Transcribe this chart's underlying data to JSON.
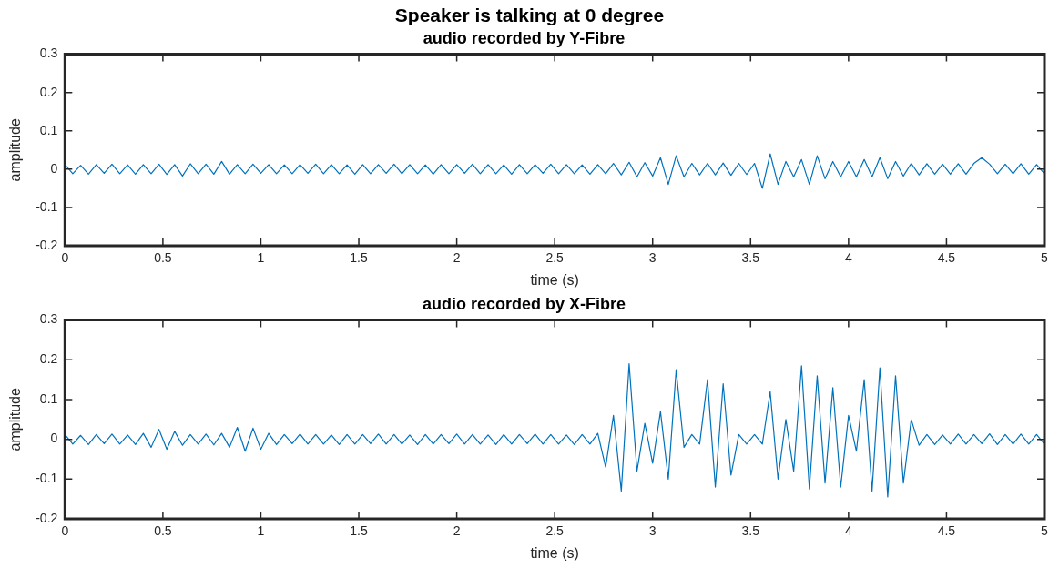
{
  "chart_data": [
    {
      "type": "line",
      "title": "Speaker is talking at 0 degree",
      "subtitle": "audio recorded by Y-Fibre",
      "xlabel": "time (s)",
      "ylabel": "amplitude",
      "marker": "none",
      "grid": false,
      "xlim": [
        0,
        5
      ],
      "xticks": [
        0,
        0.5,
        1,
        1.5,
        2,
        2.5,
        3,
        3.5,
        4,
        4.5,
        5
      ],
      "ylim": [
        -0.2,
        0.3
      ],
      "yticks": [
        -0.2,
        -0.1,
        0,
        0.1,
        0.2,
        0.3
      ],
      "x": [
        0,
        0.04,
        0.08,
        0.12,
        0.16,
        0.2,
        0.24,
        0.28,
        0.32,
        0.36,
        0.4,
        0.44,
        0.48,
        0.52,
        0.56,
        0.6,
        0.64,
        0.68,
        0.72,
        0.76,
        0.8,
        0.84,
        0.88,
        0.92,
        0.96,
        1,
        1.04,
        1.08,
        1.12,
        1.16,
        1.2,
        1.24,
        1.28,
        1.32,
        1.36,
        1.4,
        1.44,
        1.48,
        1.52,
        1.56,
        1.6,
        1.64,
        1.68,
        1.72,
        1.76,
        1.8,
        1.84,
        1.88,
        1.92,
        1.96,
        2,
        2.04,
        2.08,
        2.12,
        2.16,
        2.2,
        2.24,
        2.28,
        2.32,
        2.36,
        2.4,
        2.44,
        2.48,
        2.52,
        2.56,
        2.6,
        2.64,
        2.68,
        2.72,
        2.76,
        2.8,
        2.84,
        2.88,
        2.92,
        2.96,
        3,
        3.04,
        3.08,
        3.12,
        3.16,
        3.2,
        3.24,
        3.28,
        3.32,
        3.36,
        3.4,
        3.44,
        3.48,
        3.52,
        3.56,
        3.6,
        3.64,
        3.68,
        3.72,
        3.76,
        3.8,
        3.84,
        3.88,
        3.92,
        3.96,
        4,
        4.04,
        4.08,
        4.12,
        4.16,
        4.2,
        4.24,
        4.28,
        4.32,
        4.36,
        4.4,
        4.44,
        4.48,
        4.52,
        4.56,
        4.6,
        4.64,
        4.68,
        4.72,
        4.76,
        4.8,
        4.84,
        4.88,
        4.92,
        4.96,
        5
      ],
      "series": [
        {
          "color": "#0072bd",
          "values": [
            0.012,
            -0.012,
            0.01,
            -0.013,
            0.012,
            -0.011,
            0.013,
            -0.012,
            0.011,
            -0.013,
            0.012,
            -0.012,
            0.013,
            -0.014,
            0.012,
            -0.018,
            0.014,
            -0.012,
            0.013,
            -0.013,
            0.02,
            -0.013,
            0.012,
            -0.012,
            0.013,
            -0.011,
            0.012,
            -0.012,
            0.011,
            -0.012,
            0.012,
            -0.011,
            0.013,
            -0.012,
            0.012,
            -0.012,
            0.011,
            -0.013,
            0.012,
            -0.012,
            0.012,
            -0.011,
            0.013,
            -0.012,
            0.012,
            -0.012,
            0.011,
            -0.013,
            0.012,
            -0.012,
            0.012,
            -0.011,
            0.013,
            -0.012,
            0.012,
            -0.012,
            0.011,
            -0.013,
            0.012,
            -0.012,
            0.012,
            -0.011,
            0.013,
            -0.012,
            0.012,
            -0.012,
            0.011,
            -0.013,
            0.012,
            -0.012,
            0.015,
            -0.015,
            0.018,
            -0.02,
            0.017,
            -0.018,
            0.03,
            -0.04,
            0.035,
            -0.02,
            0.015,
            -0.015,
            0.015,
            -0.015,
            0.016,
            -0.016,
            0.015,
            -0.014,
            0.015,
            -0.05,
            0.04,
            -0.04,
            0.02,
            -0.02,
            0.025,
            -0.04,
            0.035,
            -0.025,
            0.02,
            -0.02,
            0.02,
            -0.02,
            0.025,
            -0.02,
            0.03,
            -0.025,
            0.02,
            -0.018,
            0.015,
            -0.015,
            0.014,
            -0.013,
            0.013,
            -0.013,
            0.014,
            -0.013,
            0.015,
            0.03,
            0.013,
            -0.012,
            0.013,
            -0.012,
            0.014,
            -0.013,
            0.012,
            -0.012
          ]
        }
      ]
    },
    {
      "type": "line",
      "title": "audio recorded by X-Fibre",
      "xlabel": "time (s)",
      "ylabel": "amplitude",
      "marker": "none",
      "grid": false,
      "xlim": [
        0,
        5
      ],
      "xticks": [
        0,
        0.5,
        1,
        1.5,
        2,
        2.5,
        3,
        3.5,
        4,
        4.5,
        5
      ],
      "ylim": [
        -0.2,
        0.3
      ],
      "yticks": [
        -0.2,
        -0.1,
        0,
        0.1,
        0.2,
        0.3
      ],
      "x": [
        0,
        0.04,
        0.08,
        0.12,
        0.16,
        0.2,
        0.24,
        0.28,
        0.32,
        0.36,
        0.4,
        0.44,
        0.48,
        0.52,
        0.56,
        0.6,
        0.64,
        0.68,
        0.72,
        0.76,
        0.8,
        0.84,
        0.88,
        0.92,
        0.96,
        1,
        1.04,
        1.08,
        1.12,
        1.16,
        1.2,
        1.24,
        1.28,
        1.32,
        1.36,
        1.4,
        1.44,
        1.48,
        1.52,
        1.56,
        1.6,
        1.64,
        1.68,
        1.72,
        1.76,
        1.8,
        1.84,
        1.88,
        1.92,
        1.96,
        2,
        2.04,
        2.08,
        2.12,
        2.16,
        2.2,
        2.24,
        2.28,
        2.32,
        2.36,
        2.4,
        2.44,
        2.48,
        2.52,
        2.56,
        2.6,
        2.64,
        2.68,
        2.72,
        2.76,
        2.8,
        2.84,
        2.88,
        2.92,
        2.96,
        3,
        3.04,
        3.08,
        3.12,
        3.16,
        3.2,
        3.24,
        3.28,
        3.32,
        3.36,
        3.4,
        3.44,
        3.48,
        3.52,
        3.56,
        3.6,
        3.64,
        3.68,
        3.72,
        3.76,
        3.8,
        3.84,
        3.88,
        3.92,
        3.96,
        4,
        4.04,
        4.08,
        4.12,
        4.16,
        4.2,
        4.24,
        4.28,
        4.32,
        4.36,
        4.4,
        4.44,
        4.48,
        4.52,
        4.56,
        4.6,
        4.64,
        4.68,
        4.72,
        4.76,
        4.8,
        4.84,
        4.88,
        4.92,
        4.96,
        5
      ],
      "series": [
        {
          "color": "#0072bd",
          "values": [
            0.012,
            -0.012,
            0.01,
            -0.013,
            0.012,
            -0.011,
            0.013,
            -0.012,
            0.011,
            -0.013,
            0.015,
            -0.02,
            0.025,
            -0.025,
            0.02,
            -0.015,
            0.012,
            -0.012,
            0.013,
            -0.014,
            0.015,
            -0.02,
            0.03,
            -0.03,
            0.028,
            -0.025,
            0.015,
            -0.013,
            0.012,
            -0.011,
            0.013,
            -0.012,
            0.012,
            -0.012,
            0.011,
            -0.013,
            0.012,
            -0.012,
            0.012,
            -0.011,
            0.013,
            -0.012,
            0.012,
            -0.012,
            0.011,
            -0.013,
            0.012,
            -0.012,
            0.012,
            -0.011,
            0.013,
            -0.012,
            0.012,
            -0.012,
            0.011,
            -0.013,
            0.012,
            -0.012,
            0.012,
            -0.011,
            0.013,
            -0.012,
            0.012,
            -0.012,
            0.011,
            -0.013,
            0.012,
            -0.012,
            0.015,
            -0.07,
            0.06,
            -0.13,
            0.19,
            -0.08,
            0.04,
            -0.06,
            0.07,
            -0.1,
            0.175,
            -0.02,
            0.012,
            -0.012,
            0.15,
            -0.12,
            0.14,
            -0.09,
            0.012,
            -0.012,
            0.012,
            -0.012,
            0.12,
            -0.1,
            0.05,
            -0.08,
            0.185,
            -0.125,
            0.16,
            -0.11,
            0.13,
            -0.12,
            0.06,
            -0.03,
            0.15,
            -0.13,
            0.18,
            -0.145,
            0.16,
            -0.11,
            0.05,
            -0.015,
            0.012,
            -0.013,
            0.011,
            -0.012,
            0.013,
            -0.012,
            0.012,
            -0.011,
            0.014,
            -0.013,
            0.012,
            -0.012,
            0.013,
            -0.012,
            0.012,
            -0.012
          ]
        }
      ]
    }
  ]
}
